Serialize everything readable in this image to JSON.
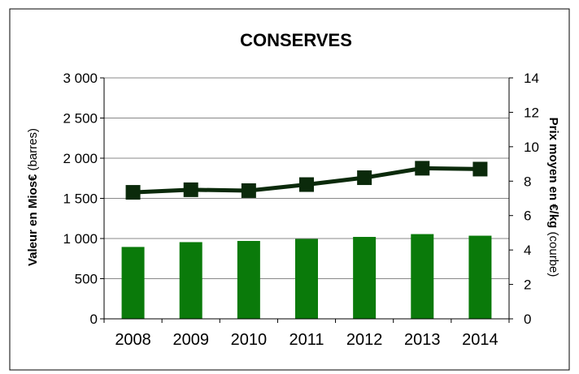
{
  "chart_data": {
    "type": "bar+line",
    "title": "CONSERVES",
    "categories": [
      "2008",
      "2009",
      "2010",
      "2011",
      "2012",
      "2013",
      "2014"
    ],
    "y_left": {
      "label_bold": "Valeur en Mios€",
      "label_normal": " (barres)",
      "ylim": [
        0,
        3000
      ],
      "ticks": [
        "0",
        "500",
        "1 000",
        "1 500",
        "2 000",
        "2 500",
        "3 000"
      ]
    },
    "y_right": {
      "label_bold": "Prix moyen en €/kg",
      "label_normal": " (courbe)",
      "ylim": [
        0,
        14
      ],
      "ticks": [
        "0",
        "2",
        "4",
        "6",
        "8",
        "10",
        "12",
        "14"
      ]
    },
    "series": [
      {
        "type": "bar",
        "axis": "left",
        "values": [
          895,
          955,
          970,
          995,
          1020,
          1055,
          1035
        ],
        "color": "#0a7a0a"
      },
      {
        "type": "line",
        "axis": "right",
        "values": [
          7.35,
          7.5,
          7.45,
          7.8,
          8.2,
          8.75,
          8.7
        ],
        "color": "#0b2a0b",
        "marker": "square"
      }
    ],
    "grid": "horizontal",
    "legend": "none"
  }
}
